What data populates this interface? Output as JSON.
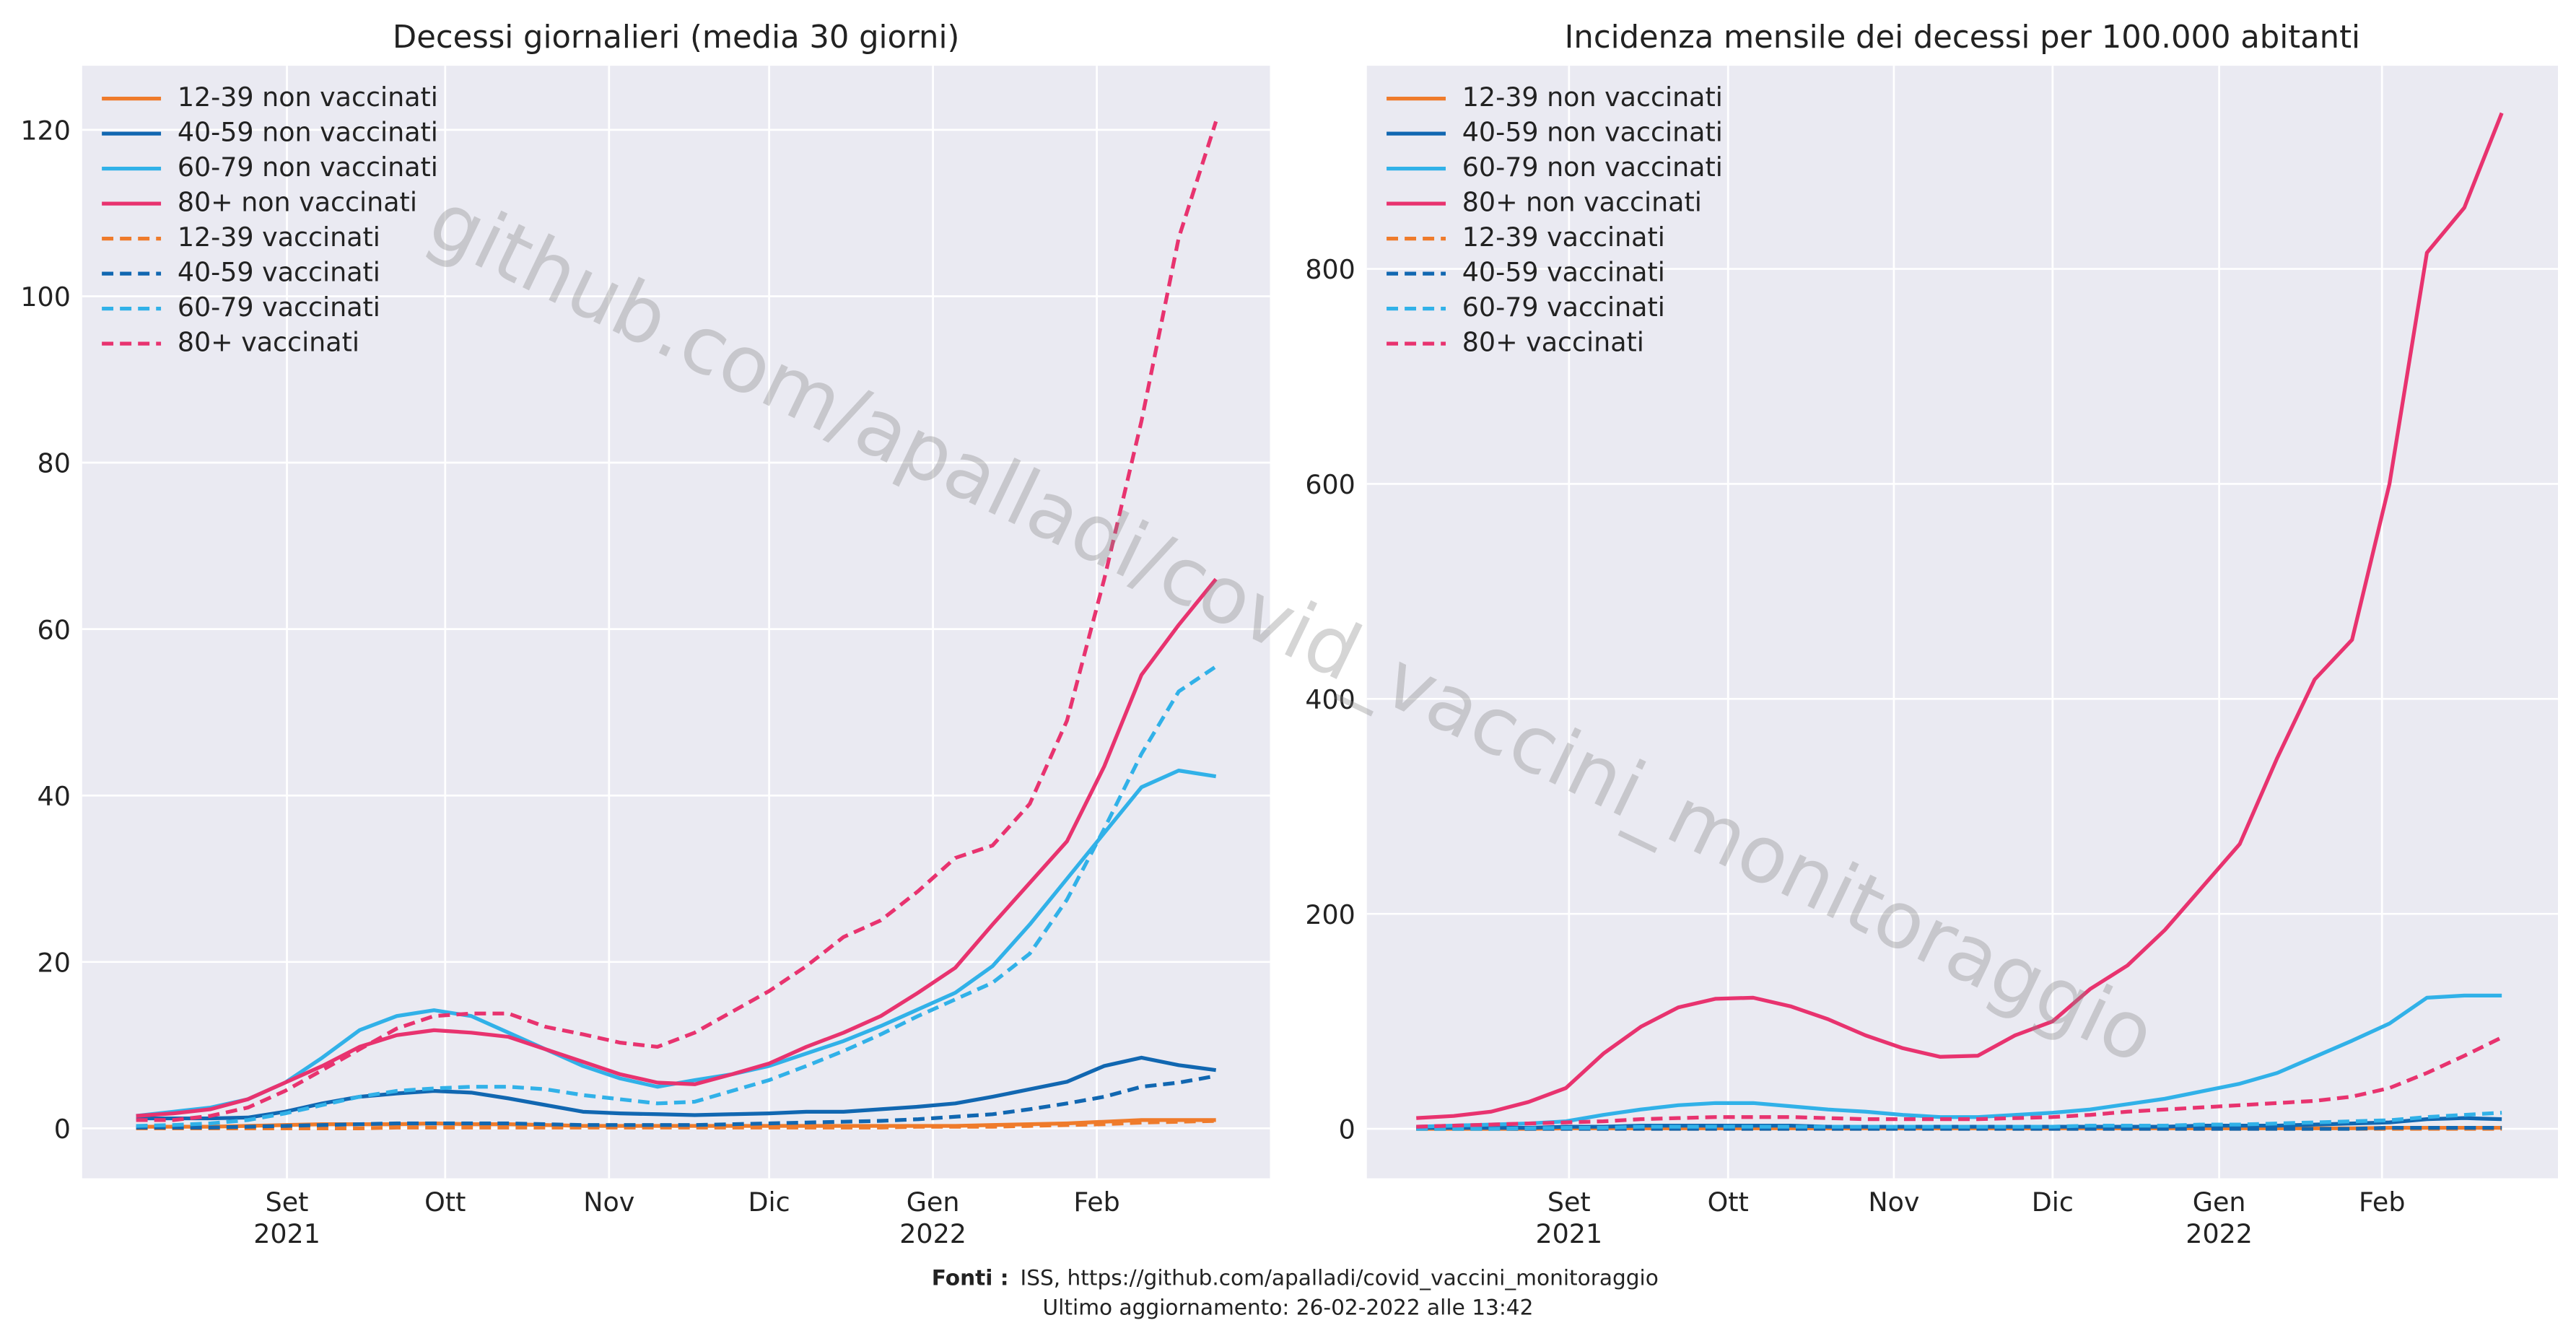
{
  "chart_data": [
    {
      "type": "line",
      "title": "Decessi giornalieri (media 30 giorni)",
      "categories": [
        null,
        null,
        null,
        null,
        null,
        null,
        null,
        null,
        null,
        null,
        null,
        null,
        null,
        null,
        null,
        null,
        null,
        null,
        null,
        null,
        null,
        null,
        null,
        null,
        null,
        null,
        null,
        null,
        null,
        null
      ],
      "xlim": [
        -1.45,
        30.45
      ],
      "xticks": [
        {
          "value": 4.05,
          "label": "Set\n2021"
        },
        {
          "value": 8.3,
          "label": "Ott"
        },
        {
          "value": 12.7,
          "label": "Nov"
        },
        {
          "value": 17.0,
          "label": "Dic"
        },
        {
          "value": 21.4,
          "label": "Gen\n2022"
        },
        {
          "value": 25.8,
          "label": "Feb"
        }
      ],
      "ylim": [
        -6,
        127.7
      ],
      "yticks": [
        0,
        20,
        40,
        60,
        80,
        100,
        120
      ],
      "grid": true,
      "legend": "upper left",
      "series": [
        {
          "name": "12-39 non vaccinati",
          "color": "#ef7b2b",
          "linestyle": "solid",
          "values": [
            0.2,
            0.2,
            0.2,
            0.3,
            0.4,
            0.5,
            0.5,
            0.5,
            0.6,
            0.5,
            0.5,
            0.4,
            0.3,
            0.3,
            0.3,
            0.3,
            0.3,
            0.3,
            0.3,
            0.3,
            0.3,
            0.3,
            0.3,
            0.4,
            0.5,
            0.6,
            0.8,
            1,
            1,
            1
          ]
        },
        {
          "name": "40-59 non vaccinati",
          "color": "#1167b1",
          "linestyle": "solid",
          "values": [
            1.2,
            1.2,
            1.2,
            1.3,
            2,
            3,
            3.8,
            4.2,
            4.5,
            4.3,
            3.6,
            2.8,
            2,
            1.8,
            1.7,
            1.6,
            1.7,
            1.8,
            2,
            2,
            2.3,
            2.6,
            3,
            3.8,
            4.7,
            5.6,
            7.5,
            8.5,
            7.6,
            7
          ]
        },
        {
          "name": "60-79 non vaccinati",
          "color": "#31b1e8",
          "linestyle": "solid",
          "values": [
            1.5,
            2,
            2.5,
            3.5,
            5.5,
            8.5,
            11.8,
            13.5,
            14.2,
            13.5,
            11.5,
            9.5,
            7.5,
            6,
            5,
            5.8,
            6.5,
            7.5,
            9,
            10.5,
            12.3,
            14.3,
            16.3,
            19.5,
            24.5,
            30,
            35.5,
            41,
            43,
            42.3
          ]
        },
        {
          "name": "80+ non vaccinati",
          "color": "#e8336f",
          "linestyle": "solid",
          "values": [
            1.5,
            1.8,
            2.3,
            3.5,
            5.5,
            7.5,
            9.8,
            11.2,
            11.8,
            11.5,
            11,
            9.5,
            8,
            6.5,
            5.5,
            5.3,
            6.5,
            7.8,
            9.8,
            11.5,
            13.5,
            16.3,
            19.3,
            24.5,
            29.5,
            34.5,
            43.5,
            54.5,
            60.5,
            66
          ]
        },
        {
          "name": "12-39 vaccinati",
          "color": "#ef7b2b",
          "linestyle": "dashed",
          "values": [
            0,
            0,
            0,
            0,
            0,
            0,
            0,
            0.1,
            0.1,
            0.1,
            0.1,
            0.1,
            0.1,
            0.1,
            0.1,
            0.1,
            0.1,
            0.1,
            0.1,
            0.1,
            0.1,
            0.2,
            0.2,
            0.2,
            0.3,
            0.4,
            0.5,
            0.7,
            0.8,
            0.9
          ]
        },
        {
          "name": "40-59 vaccinati",
          "color": "#1167b1",
          "linestyle": "dashed",
          "values": [
            0.1,
            0.1,
            0.1,
            0.2,
            0.3,
            0.4,
            0.5,
            0.6,
            0.6,
            0.6,
            0.6,
            0.5,
            0.4,
            0.4,
            0.4,
            0.4,
            0.5,
            0.6,
            0.7,
            0.8,
            0.9,
            1.1,
            1.4,
            1.7,
            2.3,
            3,
            3.8,
            5,
            5.5,
            6.3
          ]
        },
        {
          "name": "60-79 vaccinati",
          "color": "#31b1e8",
          "linestyle": "dashed",
          "values": [
            0.3,
            0.4,
            0.6,
            1,
            1.8,
            2.8,
            3.8,
            4.5,
            4.8,
            5,
            5,
            4.7,
            4,
            3.5,
            3,
            3.2,
            4.5,
            5.8,
            7.5,
            9.3,
            11.3,
            13.5,
            15.5,
            17.5,
            21,
            27.5,
            36,
            45,
            52.5,
            55.5
          ]
        },
        {
          "name": "80+ vaccinati",
          "color": "#e8336f",
          "linestyle": "dashed",
          "values": [
            1,
            1,
            1.5,
            2.5,
            4.5,
            7,
            9.5,
            12,
            13.5,
            13.8,
            13.8,
            12.2,
            11.3,
            10.3,
            9.8,
            11.5,
            14,
            16.5,
            19.5,
            23,
            25,
            28.5,
            32.5,
            34,
            39,
            49,
            66,
            85,
            107,
            121
          ]
        }
      ]
    },
    {
      "type": "line",
      "title": "Incidenza mensile dei decessi per 100.000 abitanti",
      "categories": [
        null,
        null,
        null,
        null,
        null,
        null,
        null,
        null,
        null,
        null,
        null,
        null,
        null,
        null,
        null,
        null,
        null,
        null,
        null,
        null,
        null,
        null,
        null,
        null,
        null,
        null,
        null,
        null,
        null,
        null
      ],
      "xlim": [
        -1.32,
        30.5
      ],
      "xticks": [
        {
          "value": 4.08,
          "label": "Set\n2021"
        },
        {
          "value": 8.33,
          "label": "Ott"
        },
        {
          "value": 12.76,
          "label": "Nov"
        },
        {
          "value": 17.0,
          "label": "Dic"
        },
        {
          "value": 21.45,
          "label": "Gen\n2022"
        },
        {
          "value": 25.8,
          "label": "Feb"
        }
      ],
      "ylim": [
        -46,
        989
      ],
      "yticks": [
        0,
        200,
        400,
        600,
        800
      ],
      "grid": true,
      "legend": "upper left",
      "series": [
        {
          "name": "12-39 non vaccinati",
          "color": "#ef7b2b",
          "linestyle": "solid",
          "values": [
            0,
            0,
            0,
            0,
            0.5,
            0.5,
            0.5,
            0.5,
            0.5,
            0.5,
            0.5,
            0.5,
            0.5,
            0.5,
            0.5,
            0.5,
            0.5,
            0.5,
            0.5,
            0.5,
            0.5,
            0.5,
            0.5,
            0.5,
            0.5,
            0.5,
            1,
            1,
            1,
            1
          ]
        },
        {
          "name": "40-59 non vaccinati",
          "color": "#1167b1",
          "linestyle": "solid",
          "values": [
            1,
            1,
            1,
            1,
            2,
            2,
            3,
            3,
            3,
            3,
            3,
            2,
            2,
            2,
            2,
            2,
            2,
            2,
            2,
            2,
            2,
            3,
            3,
            3,
            4,
            5,
            6,
            9,
            10,
            9
          ]
        },
        {
          "name": "60-79 non vaccinati",
          "color": "#31b1e8",
          "linestyle": "solid",
          "values": [
            2,
            3,
            4,
            5,
            7,
            13,
            18,
            22,
            24,
            24,
            21,
            18,
            16,
            13,
            11,
            11,
            13,
            15,
            18,
            23,
            28,
            35,
            42,
            52,
            67,
            82,
            98,
            122,
            124,
            124
          ]
        },
        {
          "name": "80+ non vaccinati",
          "color": "#e8336f",
          "linestyle": "solid",
          "values": [
            10,
            12,
            16,
            25,
            38,
            70,
            95,
            113,
            121,
            122,
            114,
            102,
            87,
            75,
            67,
            68,
            87,
            100,
            130,
            152,
            185,
            225,
            265,
            345,
            418,
            455,
            600,
            815,
            857,
            945
          ]
        },
        {
          "name": "12-39 vaccinati",
          "color": "#ef7b2b",
          "linestyle": "dashed",
          "values": [
            0,
            0,
            0,
            0,
            0,
            0,
            0,
            0,
            0,
            0,
            0,
            0,
            0,
            0,
            0,
            0,
            0,
            0,
            0,
            0,
            0,
            0,
            0,
            0,
            0,
            0,
            0,
            0,
            0,
            0
          ]
        },
        {
          "name": "40-59 vaccinati",
          "color": "#1167b1",
          "linestyle": "dashed",
          "values": [
            0,
            0,
            0,
            0,
            0,
            0,
            0,
            0,
            0,
            0,
            0,
            0,
            0,
            0,
            0,
            0,
            0,
            0,
            0,
            0,
            0,
            0,
            0,
            0,
            0,
            0,
            1,
            1,
            1,
            1
          ]
        },
        {
          "name": "60-79 vaccinati",
          "color": "#31b1e8",
          "linestyle": "dashed",
          "values": [
            0,
            0,
            0,
            0.5,
            1,
            1,
            2,
            2,
            2,
            2,
            2,
            2,
            2,
            2,
            2,
            2,
            2,
            2,
            3,
            3,
            3,
            4,
            4,
            5,
            6,
            7,
            8,
            11,
            13,
            15
          ]
        },
        {
          "name": "80+ vaccinati",
          "color": "#e8336f",
          "linestyle": "dashed",
          "values": [
            2,
            3,
            4,
            5,
            6,
            7,
            9,
            10,
            11,
            11,
            11,
            10,
            9,
            9,
            9,
            9,
            10,
            11,
            13,
            16,
            18,
            20,
            22,
            24,
            26,
            30,
            38,
            52,
            68,
            85
          ]
        }
      ]
    }
  ],
  "watermark": "github.com/apalladi/covid_vaccini_monitoraggio",
  "footer": {
    "source_label": "Fonti :",
    "source": "ISS, https://github.com/apalladi/covid_vaccini_monitoraggio",
    "updated": "Ultimo aggiornamento: 26-02-2022 alle 13:42"
  }
}
